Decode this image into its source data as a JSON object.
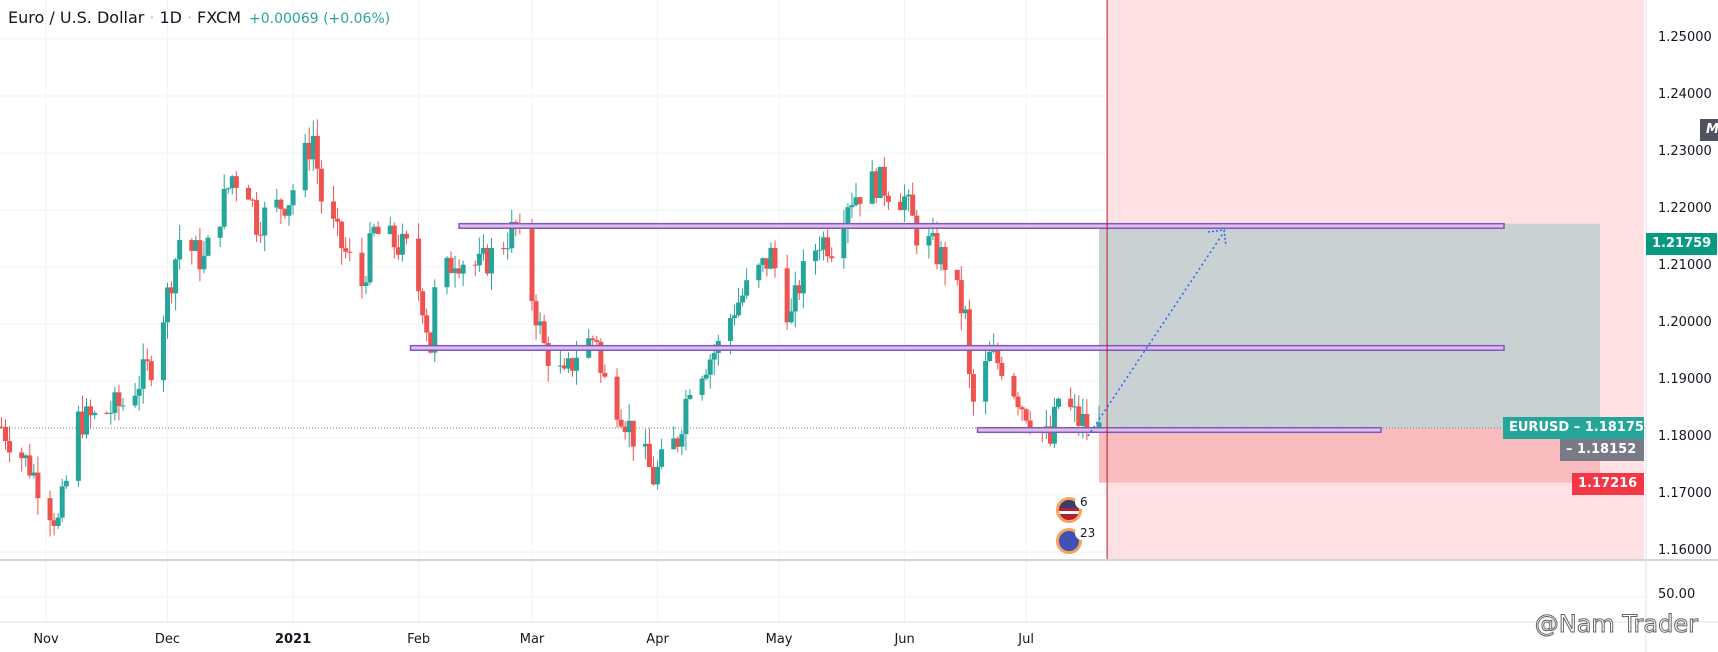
{
  "header": {
    "title": "Euro / U.S. Dollar",
    "interval": "1D",
    "exchange": "FXCM",
    "change": "+0.00069 (+0.06%)"
  },
  "price_axis": {
    "labels": [
      "1.25000",
      "1.24000",
      "1.23000",
      "1.22000",
      "1.21000",
      "1.20000",
      "1.19000",
      "1.18000",
      "1.17000",
      "1.16000"
    ]
  },
  "tags": {
    "symbol_label": "EURUSD",
    "last_price": "1.18175",
    "gray_price": "1.18152",
    "stop_price": "1.17216",
    "target_price": "1.21759",
    "m_badge": "M"
  },
  "indicator_pane": {
    "label": "50.00"
  },
  "date_axis": {
    "labels": [
      "Nov",
      "Dec",
      "2021",
      "Feb",
      "Mar",
      "Apr",
      "May",
      "Jun",
      "Jul"
    ]
  },
  "events": [
    {
      "icon": "us-flag-icon",
      "text": "6"
    },
    {
      "icon": "eu-flag-icon",
      "text": "23"
    }
  ],
  "watermark": "@Nam Trader",
  "colors": {
    "up": "#26a69a",
    "down": "#ef5350",
    "zone_line": "#7e57c2",
    "zone_fill": "#e1bee7",
    "target_fill": "#c9d1d2",
    "stop_fill": "#f8bcbe",
    "bg_zone": "#ffe0e3",
    "arrow": "#2962ff"
  },
  "chart_data": {
    "type": "candlestick",
    "symbol": "EURUSD",
    "ylim": [
      1.155,
      1.255
    ],
    "closes": [
      {
        "date": "2020-10-21",
        "close": 1.182
      },
      {
        "date": "2020-10-28",
        "close": 1.175
      },
      {
        "date": "2020-11-04",
        "close": 1.165
      },
      {
        "date": "2020-11-09",
        "close": 1.183
      },
      {
        "date": "2020-11-13",
        "close": 1.1835
      },
      {
        "date": "2020-11-20",
        "close": 1.186
      },
      {
        "date": "2020-11-27",
        "close": 1.193
      },
      {
        "date": "2020-12-01",
        "close": 1.205
      },
      {
        "date": "2020-12-04",
        "close": 1.215
      },
      {
        "date": "2020-12-10",
        "close": 1.211
      },
      {
        "date": "2020-12-17",
        "close": 1.226
      },
      {
        "date": "2020-12-21",
        "close": 1.224
      },
      {
        "date": "2020-12-23",
        "close": 1.218
      },
      {
        "date": "2020-12-31",
        "close": 1.222
      },
      {
        "date": "2021-01-06",
        "close": 1.233
      },
      {
        "date": "2021-01-08",
        "close": 1.222
      },
      {
        "date": "2021-01-12",
        "close": 1.215
      },
      {
        "date": "2021-01-18",
        "close": 1.207
      },
      {
        "date": "2021-01-21",
        "close": 1.216
      },
      {
        "date": "2021-01-29",
        "close": 1.213
      },
      {
        "date": "2021-02-02",
        "close": 1.204
      },
      {
        "date": "2021-02-04",
        "close": 1.196
      },
      {
        "date": "2021-02-05",
        "close": 1.205
      },
      {
        "date": "2021-02-10",
        "close": 1.212
      },
      {
        "date": "2021-02-16",
        "close": 1.21
      },
      {
        "date": "2021-02-19",
        "close": 1.212
      },
      {
        "date": "2021-02-25",
        "close": 1.217
      },
      {
        "date": "2021-03-01",
        "close": 1.205
      },
      {
        "date": "2021-03-04",
        "close": 1.196
      },
      {
        "date": "2021-03-09",
        "close": 1.19
      },
      {
        "date": "2021-03-12",
        "close": 1.195
      },
      {
        "date": "2021-03-17",
        "close": 1.198
      },
      {
        "date": "2021-03-18",
        "close": 1.191
      },
      {
        "date": "2021-03-23",
        "close": 1.185
      },
      {
        "date": "2021-03-31",
        "close": 1.173
      },
      {
        "date": "2021-04-06",
        "close": 1.18
      },
      {
        "date": "2021-04-09",
        "close": 1.19
      },
      {
        "date": "2021-04-16",
        "close": 1.196
      },
      {
        "date": "2021-04-20",
        "close": 1.203
      },
      {
        "date": "2021-04-29",
        "close": 1.212
      },
      {
        "date": "2021-05-04",
        "close": 1.201
      },
      {
        "date": "2021-05-06",
        "close": 1.207
      },
      {
        "date": "2021-05-11",
        "close": 1.215
      },
      {
        "date": "2021-05-14",
        "close": 1.214
      },
      {
        "date": "2021-05-18",
        "close": 1.222
      },
      {
        "date": "2021-05-25",
        "close": 1.225
      },
      {
        "date": "2021-06-01",
        "close": 1.222
      },
      {
        "date": "2021-06-04",
        "close": 1.216
      },
      {
        "date": "2021-06-11",
        "close": 1.211
      },
      {
        "date": "2021-06-16",
        "close": 1.201
      },
      {
        "date": "2021-06-17",
        "close": 1.19
      },
      {
        "date": "2021-06-18",
        "close": 1.186
      },
      {
        "date": "2021-06-22",
        "close": 1.194
      },
      {
        "date": "2021-06-25",
        "close": 1.193
      },
      {
        "date": "2021-06-30",
        "close": 1.186
      },
      {
        "date": "2021-07-07",
        "close": 1.179
      },
      {
        "date": "2021-07-09",
        "close": 1.187
      },
      {
        "date": "2021-07-14",
        "close": 1.183
      },
      {
        "date": "2021-07-19",
        "close": 1.1815
      }
    ],
    "zones": [
      {
        "top": 1.2176,
        "bottom": 1.2168,
        "from": "2021-02-11"
      },
      {
        "top": 1.1962,
        "bottom": 1.1954,
        "from": "2021-01-30"
      },
      {
        "top": 1.1818,
        "bottom": 1.181,
        "from": "2021-06-19"
      }
    ],
    "position": {
      "entry": 1.18175,
      "target": 1.21759,
      "stop": 1.17216
    },
    "last_price": 1.18175
  }
}
